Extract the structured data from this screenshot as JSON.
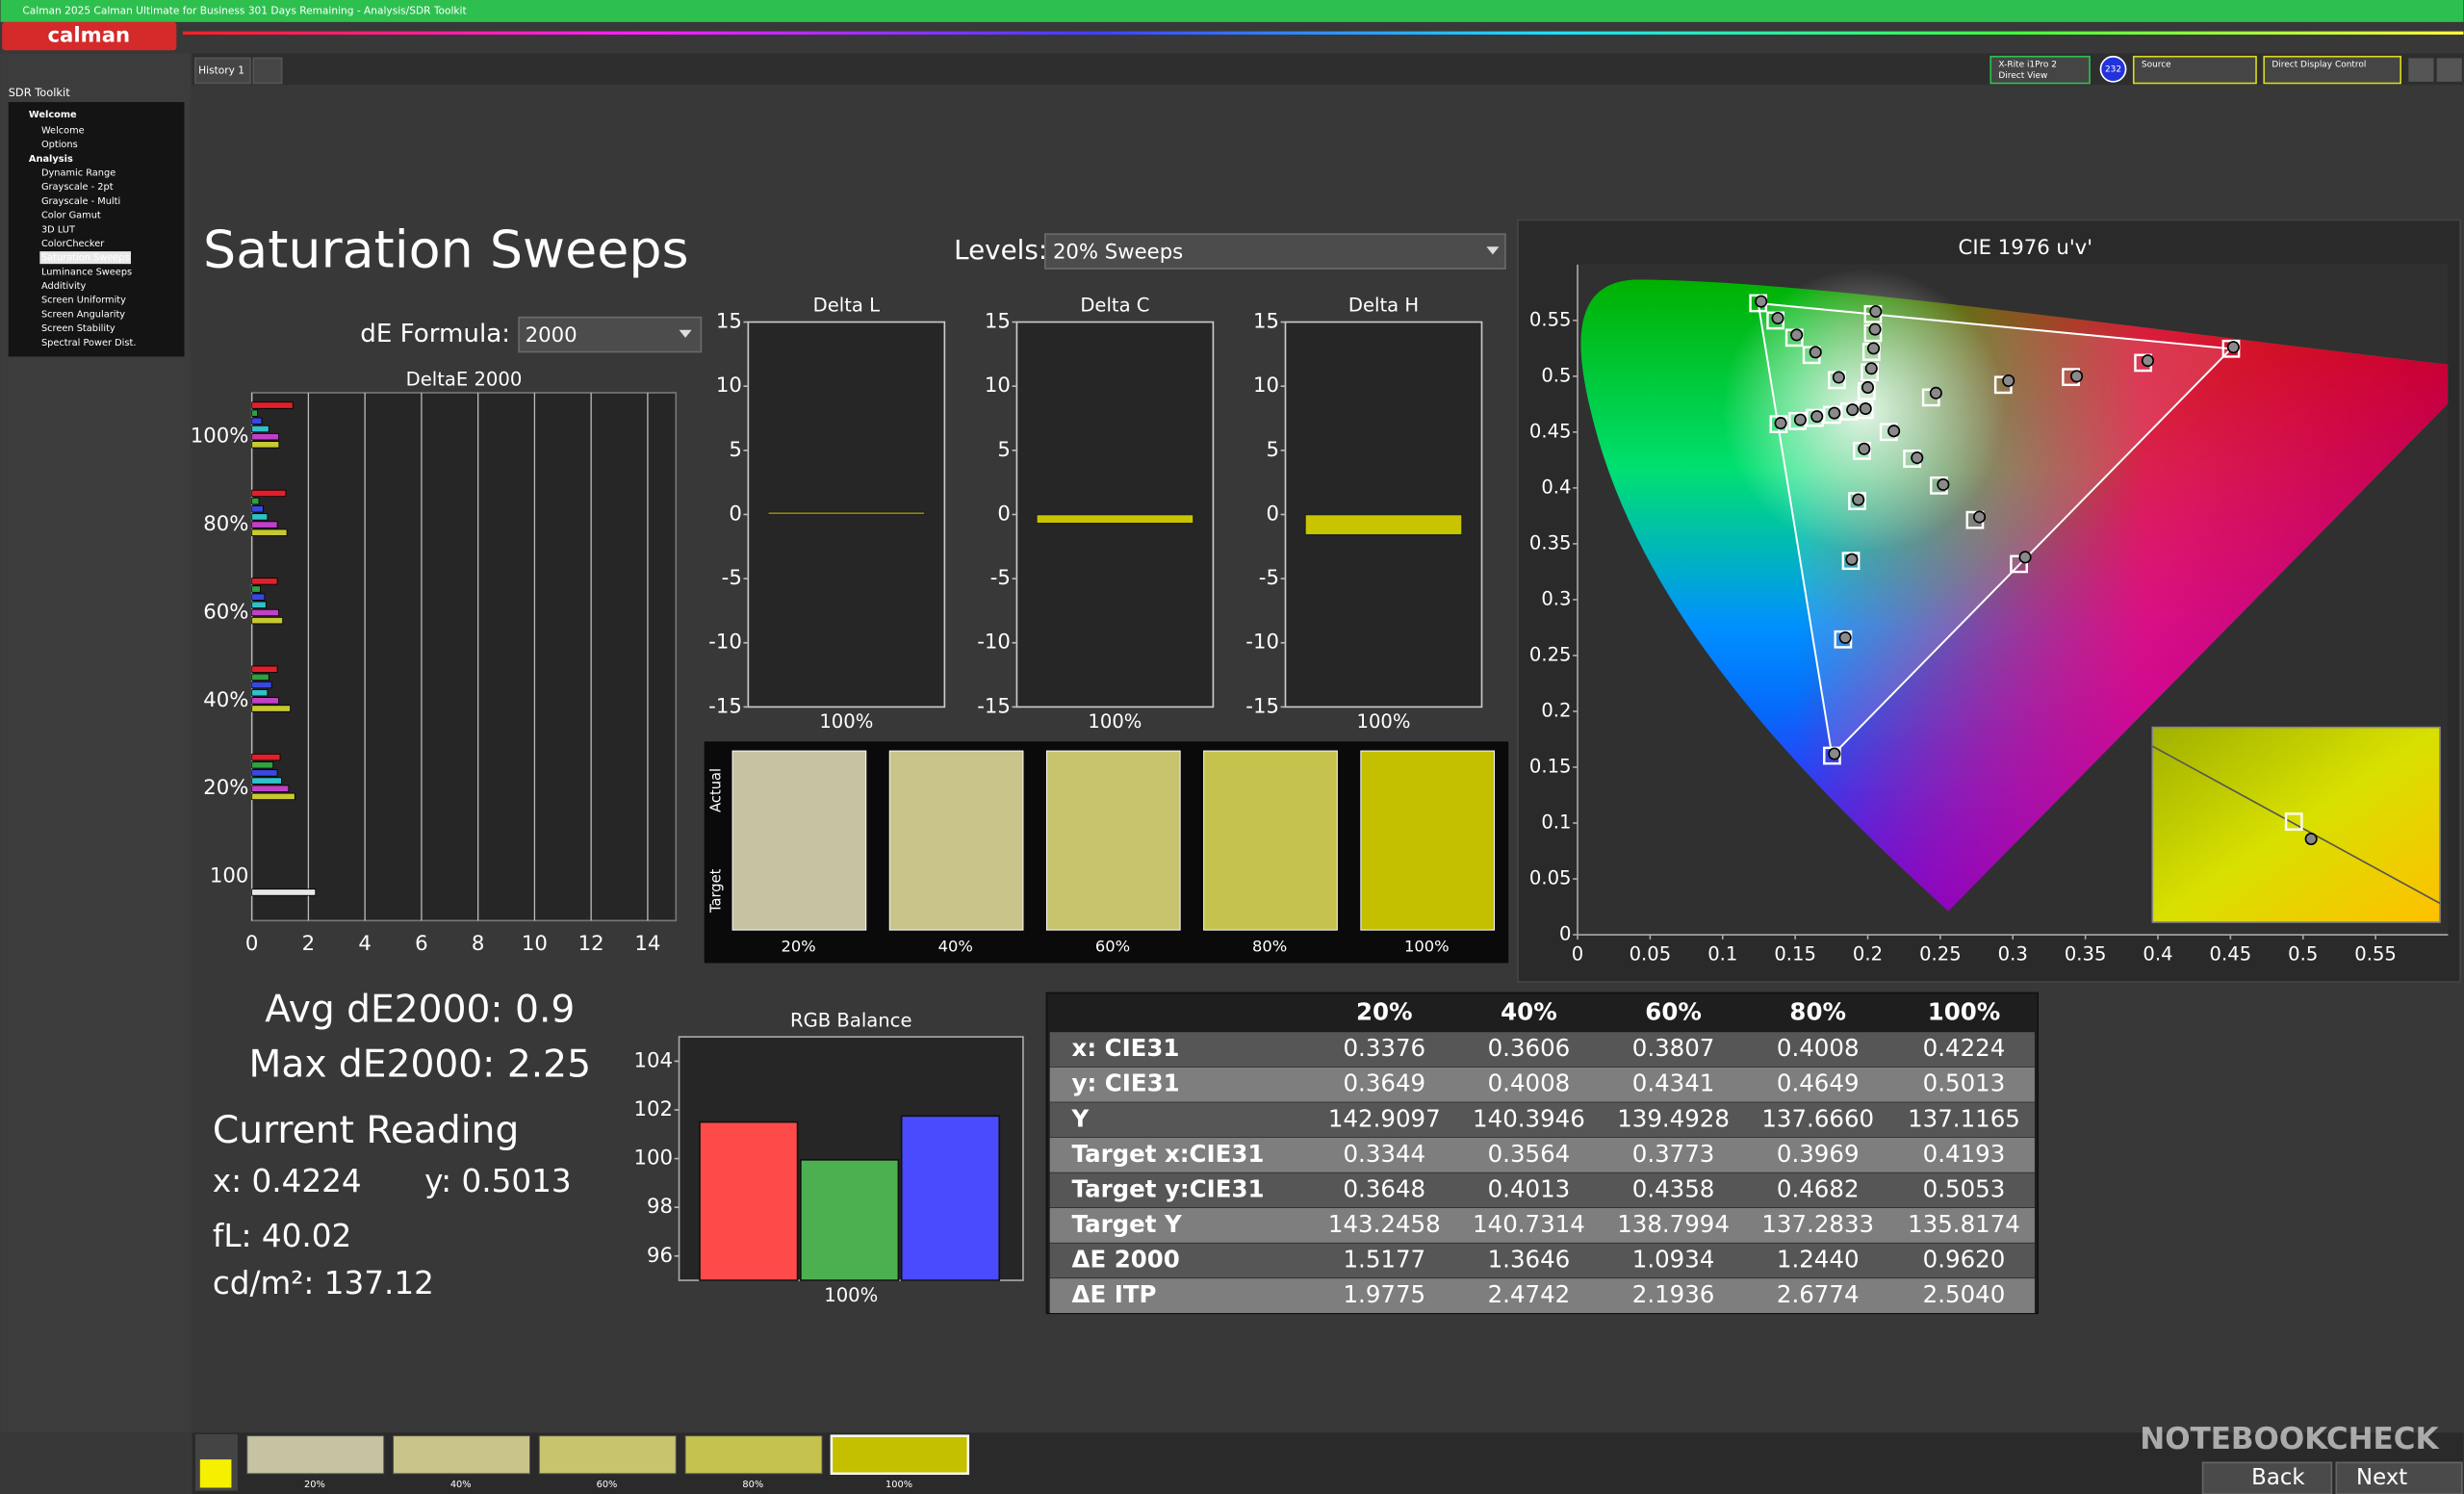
{
  "title_bar": {
    "text": "Calman 2025 Calman Ultimate for Business 301 Days Remaining  - Analysis/SDR Toolkit"
  },
  "logo": "calman",
  "tabs": [
    "History 1"
  ],
  "toolbar": {
    "meter": [
      "X-Rite i1Pro 2",
      "Direct View"
    ],
    "meter_badge": "232",
    "source": "Source",
    "display": "Direct Display Control"
  },
  "sidebar": {
    "title": "SDR Toolkit",
    "items": [
      {
        "label": "Welcome",
        "group": true
      },
      {
        "label": "Welcome"
      },
      {
        "label": "Options"
      },
      {
        "label": "Analysis",
        "group": true
      },
      {
        "label": "Dynamic Range"
      },
      {
        "label": "Grayscale - 2pt"
      },
      {
        "label": "Grayscale - Multi"
      },
      {
        "label": "Color Gamut"
      },
      {
        "label": "3D LUT"
      },
      {
        "label": "ColorChecker"
      },
      {
        "label": "Saturation Sweeps",
        "selected": true
      },
      {
        "label": "Luminance Sweeps"
      },
      {
        "label": "Additivity"
      },
      {
        "label": "Screen Uniformity"
      },
      {
        "label": "Screen Angularity"
      },
      {
        "label": "Screen Stability"
      },
      {
        "label": "Spectral Power Dist."
      }
    ]
  },
  "page": {
    "title": "Saturation Sweeps",
    "levels_label": "Levels:",
    "levels_value": "20% Sweeps",
    "de_formula_label": "dE Formula:",
    "de_formula_value": "2000"
  },
  "stats": {
    "avg": "Avg dE2000: 0.9",
    "max": "Max dE2000: 2.25",
    "current_reading": "Current Reading",
    "x": "x: 0.4224",
    "y": "y: 0.5013",
    "fl": "fL: 40.02",
    "cdm2": "cd/m²: 137.12"
  },
  "chart_data": [
    {
      "type": "bar",
      "orientation": "horizontal",
      "title": "DeltaE 2000",
      "categories": [
        "100%",
        "80%",
        "60%",
        "40%",
        "20%",
        "100"
      ],
      "series": [
        {
          "color": "#e0202a",
          "values": [
            1.45,
            1.2,
            0.9,
            0.9,
            1.0,
            null
          ]
        },
        {
          "color": "#30a040",
          "values": [
            0.2,
            0.25,
            0.3,
            0.6,
            0.75,
            null
          ]
        },
        {
          "color": "#3848e0",
          "values": [
            0.35,
            0.4,
            0.45,
            0.7,
            0.9,
            null
          ]
        },
        {
          "color": "#30c0c8",
          "values": [
            0.6,
            0.55,
            0.5,
            0.55,
            1.05,
            null
          ]
        },
        {
          "color": "#c040c8",
          "values": [
            0.95,
            0.9,
            0.95,
            0.95,
            1.3,
            null
          ]
        },
        {
          "color": "#c8c830",
          "values": [
            0.96,
            1.24,
            1.09,
            1.36,
            1.52,
            null
          ]
        },
        {
          "color": "#e8e8e8",
          "values": [
            null,
            null,
            null,
            null,
            null,
            2.25
          ]
        }
      ],
      "xlim": [
        0,
        15
      ],
      "xticks": [
        0,
        2,
        4,
        6,
        8,
        10,
        12,
        14
      ],
      "grid": true
    },
    {
      "type": "bar",
      "title": "Delta L",
      "categories": [
        "100%"
      ],
      "values": [
        0.2
      ],
      "color": "#c9c400",
      "ylim": [
        -15,
        15
      ],
      "yticks": [
        -15,
        -10,
        -5,
        0,
        5,
        10,
        15
      ]
    },
    {
      "type": "bar",
      "title": "Delta C",
      "categories": [
        "100%"
      ],
      "values": [
        -0.7
      ],
      "color": "#c9c400",
      "ylim": [
        -15,
        15
      ],
      "yticks": [
        -15,
        -10,
        -5,
        0,
        5,
        10,
        15
      ]
    },
    {
      "type": "bar",
      "title": "Delta H",
      "categories": [
        "100%"
      ],
      "values": [
        -1.6
      ],
      "color": "#c9c400",
      "ylim": [
        -15,
        15
      ],
      "yticks": [
        -15,
        -10,
        -5,
        0,
        5,
        10,
        15
      ]
    },
    {
      "type": "bar",
      "title": "RGB Balance",
      "categories": [
        "100%"
      ],
      "series": [
        {
          "color": "#ff4a4a",
          "values": [
            101.5
          ]
        },
        {
          "color": "#4caf50",
          "values": [
            99.95
          ]
        },
        {
          "color": "#4a4aff",
          "values": [
            101.75
          ]
        }
      ],
      "ylim": [
        95,
        105
      ],
      "yticks": [
        96,
        98,
        100,
        102,
        104
      ]
    },
    {
      "type": "scatter",
      "title": "CIE 1976 u'v'",
      "xlim": [
        0,
        0.6
      ],
      "ylim": [
        0,
        0.6
      ],
      "xticks": [
        0,
        0.05,
        0.1,
        0.15,
        0.2,
        0.25,
        0.3,
        0.35,
        0.4,
        0.45,
        0.5,
        0.55
      ],
      "yticks": [
        0,
        0.05,
        0.1,
        0.15,
        0.2,
        0.25,
        0.3,
        0.35,
        0.4,
        0.45,
        0.5,
        0.55
      ],
      "series": [
        {
          "marker": "square",
          "color": "#ffffff",
          "x": [
            0.2436,
            0.2934,
            0.34,
            0.3898,
            0.4504,
            0.1787,
            0.1613,
            0.1494,
            0.1364,
            0.1245,
            0.196,
            0.1927,
            0.1884,
            0.183,
            0.1754,
            0.1873,
            0.1754,
            0.1635,
            0.1516,
            0.1386,
            0.2144,
            0.2306,
            0.249,
            0.2739,
            0.3042,
            0.1992,
            0.2014,
            0.2025,
            0.2036,
            0.2036,
            0.1978
          ],
          "values": [
            0.481,
            0.4923,
            0.4993,
            0.512,
            0.5246,
            0.4965,
            0.519,
            0.5345,
            0.5499,
            0.5654,
            0.4332,
            0.3882,
            0.3347,
            0.2644,
            0.1603,
            0.4684,
            0.4655,
            0.4627,
            0.4599,
            0.4571,
            0.4501,
            0.4262,
            0.4022,
            0.3713,
            0.3319,
            0.4866,
            0.5035,
            0.5218,
            0.5387,
            0.5556,
            0.4698
          ]
        },
        {
          "marker": "circle",
          "color": "#8a8a8a",
          "x": [
            0.247,
            0.297,
            0.344,
            0.393,
            0.452,
            0.18,
            0.164,
            0.151,
            0.138,
            0.1265,
            0.1975,
            0.1935,
            0.189,
            0.1845,
            0.177,
            0.1895,
            0.177,
            0.165,
            0.1535,
            0.14,
            0.218,
            0.234,
            0.252,
            0.277,
            0.3085,
            0.2,
            0.2025,
            0.204,
            0.205,
            0.2055,
            0.1985
          ],
          "values": [
            0.485,
            0.496,
            0.5,
            0.514,
            0.526,
            0.499,
            0.5215,
            0.537,
            0.552,
            0.567,
            0.435,
            0.3895,
            0.336,
            0.266,
            0.162,
            0.47,
            0.467,
            0.464,
            0.461,
            0.458,
            0.451,
            0.427,
            0.403,
            0.374,
            0.338,
            0.49,
            0.507,
            0.525,
            0.542,
            0.558,
            0.471
          ]
        }
      ]
    }
  ],
  "swatches": {
    "row_labels": [
      "Actual",
      "Target"
    ],
    "categories": [
      "20%",
      "40%",
      "60%",
      "80%",
      "100%"
    ],
    "colors": [
      "#c5c3a2",
      "#c8c48a",
      "#c8c46e",
      "#c6c24e",
      "#c4c000"
    ]
  },
  "table": {
    "header": [
      "20%",
      "40%",
      "60%",
      "80%",
      "100%"
    ],
    "rows": [
      [
        "x: CIE31",
        "0.3376",
        "0.3606",
        "0.3807",
        "0.4008",
        "0.4224"
      ],
      [
        "y: CIE31",
        "0.3649",
        "0.4008",
        "0.4341",
        "0.4649",
        "0.5013"
      ],
      [
        "Y",
        "142.9097",
        "140.3946",
        "139.4928",
        "137.6660",
        "137.1165"
      ],
      [
        "Target x:CIE31",
        "0.3344",
        "0.3564",
        "0.3773",
        "0.3969",
        "0.4193"
      ],
      [
        "Target y:CIE31",
        "0.3648",
        "0.4013",
        "0.4358",
        "0.4682",
        "0.5053"
      ],
      [
        "Target Y",
        "143.2458",
        "140.7314",
        "138.7994",
        "137.2833",
        "135.8174"
      ],
      [
        "ΔE 2000",
        "1.5177",
        "1.3646",
        "1.0934",
        "1.2440",
        "0.9620"
      ],
      [
        "ΔE ITP",
        "1.9775",
        "2.4742",
        "2.1936",
        "2.6774",
        "2.5040"
      ]
    ]
  },
  "bottom_bar": {
    "swatches": [
      "20%",
      "40%",
      "60%",
      "80%",
      "100%"
    ],
    "back": "Back",
    "next": "Next"
  },
  "watermark": "NOTEBOOKCHECK"
}
